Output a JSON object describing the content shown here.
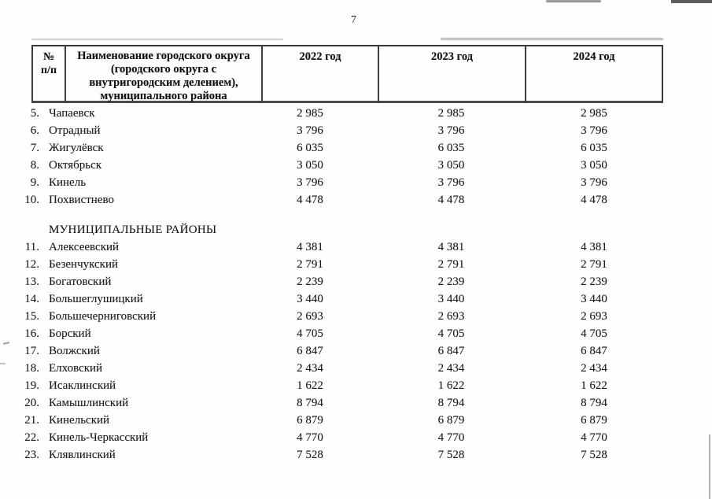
{
  "page_number": "7",
  "table": {
    "headers": {
      "num": "№\nп/п",
      "name": "Наименование городского округа\n(городского округа с\nвнутригородским делением),\nмуниципального района",
      "y2022": "2022 год",
      "y2023": "2023 год",
      "y2024": "2024 год"
    },
    "groups": [
      {
        "rows": [
          [
            "5.",
            "Чапаевск",
            "2 985",
            "2 985",
            "2 985"
          ],
          [
            "6.",
            "Отрадный",
            "3 796",
            "3 796",
            "3 796"
          ],
          [
            "7.",
            "Жигулёвск",
            "6 035",
            "6 035",
            "6 035"
          ],
          [
            "8.",
            "Октябрьск",
            "3 050",
            "3 050",
            "3 050"
          ],
          [
            "9.",
            "Кинель",
            "3 796",
            "3 796",
            "3 796"
          ],
          [
            "10.",
            "Похвистнево",
            "4 478",
            "4 478",
            "4 478"
          ]
        ]
      },
      {
        "title": "МУНИЦИПАЛЬНЫЕ РАЙОНЫ",
        "rows": [
          [
            "11.",
            "Алексеевский",
            "4 381",
            "4 381",
            "4 381"
          ],
          [
            "12.",
            "Безенчукский",
            "2 791",
            "2 791",
            "2 791"
          ],
          [
            "13.",
            "Богатовский",
            "2 239",
            "2 239",
            "2 239"
          ],
          [
            "14.",
            "Большеглушицкий",
            "3 440",
            "3 440",
            "3 440"
          ],
          [
            "15.",
            "Большечерниговский",
            "2 693",
            "2 693",
            "2 693"
          ],
          [
            "16.",
            "Борский",
            "4 705",
            "4 705",
            "4 705"
          ],
          [
            "17.",
            "Волжский",
            "6 847",
            "6 847",
            "6 847"
          ],
          [
            "18.",
            "Елховский",
            "2 434",
            "2 434",
            "2 434"
          ],
          [
            "19.",
            "Исаклинский",
            "1 622",
            "1 622",
            "1 622"
          ],
          [
            "20.",
            "Камышлинский",
            "8 794",
            "8 794",
            "8 794"
          ],
          [
            "21.",
            "Кинельский",
            "6 879",
            "6 879",
            "6 879"
          ],
          [
            "22.",
            "Кинель-Черкасский",
            "4 770",
            "4 770",
            "4 770"
          ],
          [
            "23.",
            "Клявлинский",
            "7 528",
            "7 528",
            "7 528"
          ]
        ]
      }
    ]
  }
}
